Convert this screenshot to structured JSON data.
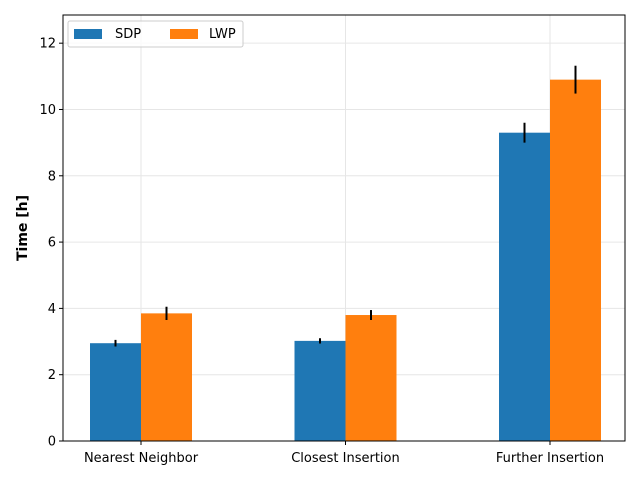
{
  "chart_data": {
    "type": "bar",
    "title": "",
    "xlabel": "",
    "ylabel": "Time [h]",
    "categories": [
      "Nearest Neighbor",
      "Closest Insertion",
      "Further Insertion"
    ],
    "series": [
      {
        "name": "SDP",
        "color": "#1f77b4",
        "values": [
          2.95,
          3.02,
          9.3
        ],
        "errors": [
          0.1,
          0.08,
          0.3
        ]
      },
      {
        "name": "LWP",
        "color": "#ff7f0e",
        "values": [
          3.85,
          3.8,
          10.9
        ],
        "errors": [
          0.2,
          0.15,
          0.42
        ]
      }
    ],
    "ylim": [
      0,
      12.85
    ],
    "yticks": [
      "0",
      "2",
      "4",
      "6",
      "8",
      "10",
      "12"
    ],
    "grid": true,
    "legend": "top-left"
  }
}
